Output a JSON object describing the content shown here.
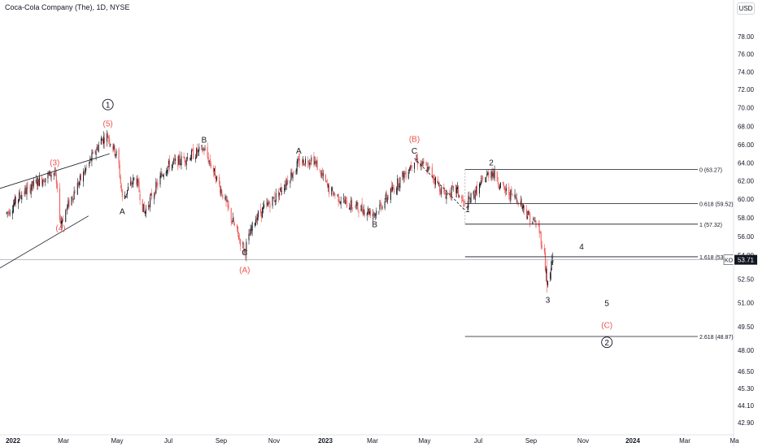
{
  "header": {
    "title": "Coca-Cola Company (The), 1D, NYSE",
    "currency": "USD"
  },
  "chart_data": {
    "type": "candlestick",
    "x_ticks": [
      "2022",
      "Mar",
      "May",
      "Jul",
      "Sep",
      "Nov",
      "2023",
      "Mar",
      "May",
      "Jul",
      "Sep",
      "Nov",
      "2024",
      "Mar",
      "Ma"
    ],
    "y_ticks": [
      78.0,
      76.0,
      74.0,
      72.0,
      70.0,
      68.0,
      66.0,
      64.0,
      62.0,
      60.0,
      58.0,
      56.0,
      54.0,
      52.5,
      51.0,
      49.5,
      48.0,
      46.5,
      45.3,
      44.1,
      42.9
    ],
    "y_tick_labels": [
      "78.00",
      "76.00",
      "74.00",
      "72.00",
      "70.00",
      "68.00",
      "66.00",
      "64.00",
      "62.00",
      "60.00",
      "58.00",
      "56.00",
      "54.00",
      "52.50",
      "51.00",
      "49.50",
      "48.00",
      "46.50",
      "45.30",
      "44.10",
      "42.90"
    ],
    "price_path": [
      [
        "2022-01-03",
        58.5
      ],
      [
        "2022-01-20",
        60.5
      ],
      [
        "2022-02-10",
        62.0
      ],
      [
        "2022-03-01",
        63.0
      ],
      [
        "2022-03-08",
        57.5
      ],
      [
        "2022-03-25",
        61.0
      ],
      [
        "2022-04-25",
        66.5
      ],
      [
        "2022-05-03",
        67.0
      ],
      [
        "2022-05-15",
        64.5
      ],
      [
        "2022-05-20",
        60.0
      ],
      [
        "2022-06-05",
        62.5
      ],
      [
        "2022-06-15",
        58.5
      ],
      [
        "2022-07-10",
        63.5
      ],
      [
        "2022-08-25",
        65.5
      ],
      [
        "2022-09-10",
        62.0
      ],
      [
        "2022-09-30",
        57.0
      ],
      [
        "2022-10-12",
        54.5
      ],
      [
        "2022-10-25",
        58.0
      ],
      [
        "2022-11-20",
        60.5
      ],
      [
        "2022-12-15",
        64.0
      ],
      [
        "2023-01-01",
        64.5
      ],
      [
        "2023-01-20",
        61.0
      ],
      [
        "2023-02-10",
        59.5
      ],
      [
        "2023-03-15",
        58.5
      ],
      [
        "2023-03-28",
        60.0
      ],
      [
        "2023-04-25",
        63.5
      ],
      [
        "2023-05-01",
        64.5
      ],
      [
        "2023-05-20",
        63.0
      ],
      [
        "2023-06-05",
        60.5
      ],
      [
        "2023-06-20",
        61.0
      ],
      [
        "2023-06-30",
        59.2
      ],
      [
        "2023-07-10",
        60.5
      ],
      [
        "2023-07-31",
        63.2
      ],
      [
        "2023-08-15",
        61.0
      ],
      [
        "2023-09-01",
        60.0
      ],
      [
        "2023-09-15",
        58.0
      ],
      [
        "2023-09-25",
        57.0
      ],
      [
        "2023-10-03",
        53.5
      ],
      [
        "2023-10-06",
        52.0
      ],
      [
        "2023-10-12",
        53.7
      ]
    ],
    "current_price": {
      "symbol": "KO",
      "value": "53.71"
    },
    "fib_levels": [
      {
        "value": 63.27,
        "label": "0 (63.27)"
      },
      {
        "value": 59.52,
        "label": "0.618 (59.52)"
      },
      {
        "value": 57.32,
        "label": "1 (57.32)"
      },
      {
        "value": 53.9,
        "label": "1.618 (53.9"
      },
      {
        "value": 48.87,
        "label": "2.618 (48.87)"
      }
    ],
    "wave_labels": [
      {
        "text": "1",
        "circled": true,
        "color": "#131722",
        "date": "2022-05-03",
        "price": 70.0
      },
      {
        "text": "(5)",
        "color": "#ef5350",
        "date": "2022-05-03",
        "price": 68.0
      },
      {
        "text": "(3)",
        "color": "#ef5350",
        "date": "2022-03-01",
        "price": 63.7
      },
      {
        "text": "(4)",
        "color": "#ef5350",
        "date": "2022-03-08",
        "price": 56.6
      },
      {
        "text": "A",
        "color": "#131722",
        "date": "2022-05-20",
        "price": 58.4
      },
      {
        "text": "B",
        "color": "#131722",
        "date": "2022-08-25",
        "price": 66.2
      },
      {
        "text": "C",
        "color": "#131722",
        "date": "2022-10-12",
        "price": 54.0
      },
      {
        "text": "(A)",
        "color": "#ef5350",
        "date": "2022-10-12",
        "price": 52.9
      },
      {
        "text": "A",
        "color": "#131722",
        "date": "2022-12-15",
        "price": 65.0
      },
      {
        "text": "B",
        "color": "#131722",
        "date": "2023-03-15",
        "price": 57.0
      },
      {
        "text": "(B)",
        "color": "#ef5350",
        "date": "2023-05-01",
        "price": 66.3
      },
      {
        "text": "C",
        "color": "#131722",
        "date": "2023-05-01",
        "price": 65.0
      },
      {
        "text": "1",
        "color": "#131722",
        "date": "2023-07-03",
        "price": 58.6
      },
      {
        "text": "2",
        "color": "#131722",
        "date": "2023-07-31",
        "price": 63.7
      },
      {
        "text": "3",
        "color": "#131722",
        "date": "2023-10-06",
        "price": 51.0
      },
      {
        "text": "4",
        "color": "#131722",
        "date": "2023-11-15",
        "price": 54.6
      },
      {
        "text": "5",
        "color": "#131722",
        "date": "2023-12-15",
        "price": 50.8
      },
      {
        "text": "(C)",
        "color": "#ef5350",
        "date": "2023-12-15",
        "price": 49.4
      },
      {
        "text": "2",
        "circled": true,
        "color": "#131722",
        "date": "2023-12-15",
        "price": 48.3
      }
    ],
    "colors": {
      "up": "#131722",
      "down": "#ef5350",
      "line": "#131722",
      "grid_line": "#9598a1",
      "axis_text": "#131722"
    }
  }
}
